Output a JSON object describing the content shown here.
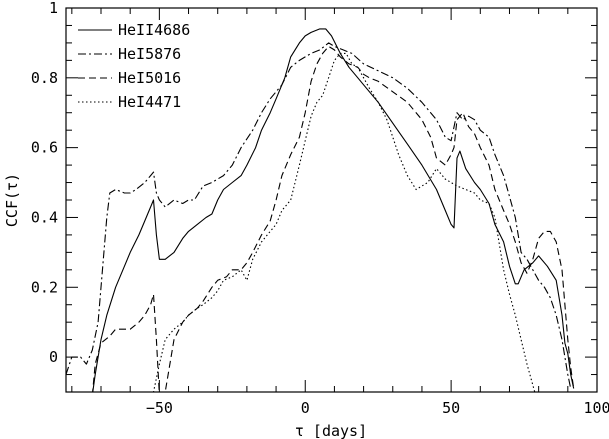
{
  "chart_data": {
    "type": "line",
    "title": "",
    "xlabel": "τ [days]",
    "ylabel": "CCF(τ)",
    "xlim": [
      -82,
      100
    ],
    "ylim": [
      -0.1,
      1.0
    ],
    "x_ticks_major": [
      -50,
      0,
      50,
      100
    ],
    "x_tick_labels": [
      "−50",
      "0",
      "50",
      "100"
    ],
    "y_ticks_major": [
      0,
      0.2,
      0.4,
      0.6,
      0.8,
      1
    ],
    "y_tick_labels": [
      "0",
      "0.2",
      "0.4",
      "0.6",
      "0.8",
      "1"
    ],
    "grid": false,
    "legend_position": "top-left",
    "series": [
      {
        "name": "HeII4686",
        "dash": "solid",
        "points": [
          [
            -73,
            -0.11
          ],
          [
            -72,
            -0.05
          ],
          [
            -70,
            0.05
          ],
          [
            -68,
            0.12
          ],
          [
            -65,
            0.2
          ],
          [
            -62,
            0.26
          ],
          [
            -60,
            0.3
          ],
          [
            -57,
            0.35
          ],
          [
            -55,
            0.39
          ],
          [
            -53,
            0.43
          ],
          [
            -52,
            0.45
          ],
          [
            -51,
            0.35
          ],
          [
            -50,
            0.28
          ],
          [
            -48,
            0.28
          ],
          [
            -45,
            0.3
          ],
          [
            -42,
            0.34
          ],
          [
            -40,
            0.36
          ],
          [
            -37,
            0.38
          ],
          [
            -34,
            0.4
          ],
          [
            -32,
            0.41
          ],
          [
            -30,
            0.45
          ],
          [
            -28,
            0.48
          ],
          [
            -25,
            0.5
          ],
          [
            -22,
            0.52
          ],
          [
            -20,
            0.55
          ],
          [
            -17,
            0.6
          ],
          [
            -15,
            0.65
          ],
          [
            -12,
            0.7
          ],
          [
            -10,
            0.74
          ],
          [
            -7,
            0.8
          ],
          [
            -5,
            0.86
          ],
          [
            -2,
            0.9
          ],
          [
            0,
            0.92
          ],
          [
            2,
            0.93
          ],
          [
            5,
            0.94
          ],
          [
            7,
            0.94
          ],
          [
            9,
            0.92
          ],
          [
            12,
            0.87
          ],
          [
            15,
            0.83
          ],
          [
            18,
            0.8
          ],
          [
            20,
            0.78
          ],
          [
            25,
            0.73
          ],
          [
            30,
            0.67
          ],
          [
            35,
            0.61
          ],
          [
            40,
            0.55
          ],
          [
            45,
            0.48
          ],
          [
            48,
            0.42
          ],
          [
            50,
            0.38
          ],
          [
            51,
            0.37
          ],
          [
            52,
            0.57
          ],
          [
            53,
            0.59
          ],
          [
            55,
            0.54
          ],
          [
            58,
            0.5
          ],
          [
            60,
            0.48
          ],
          [
            63,
            0.44
          ],
          [
            65,
            0.38
          ],
          [
            68,
            0.33
          ],
          [
            70,
            0.26
          ],
          [
            72,
            0.21
          ],
          [
            73,
            0.21
          ],
          [
            75,
            0.25
          ],
          [
            78,
            0.27
          ],
          [
            80,
            0.29
          ],
          [
            83,
            0.26
          ],
          [
            86,
            0.22
          ],
          [
            88,
            0.12
          ],
          [
            89,
            0.04
          ],
          [
            90,
            0.01
          ],
          [
            91,
            -0.05
          ],
          [
            92,
            -0.09
          ]
        ]
      },
      {
        "name": "HeI5876",
        "dash": "dash-dot",
        "points": [
          [
            -82,
            -0.05
          ],
          [
            -80,
            0.0
          ],
          [
            -77,
            0.0
          ],
          [
            -75,
            -0.02
          ],
          [
            -73,
            0.02
          ],
          [
            -71,
            0.1
          ],
          [
            -69,
            0.3
          ],
          [
            -68,
            0.4
          ],
          [
            -67,
            0.47
          ],
          [
            -65,
            0.48
          ],
          [
            -62,
            0.47
          ],
          [
            -60,
            0.47
          ],
          [
            -58,
            0.48
          ],
          [
            -55,
            0.5
          ],
          [
            -53,
            0.52
          ],
          [
            -52,
            0.53
          ],
          [
            -51,
            0.47
          ],
          [
            -50,
            0.45
          ],
          [
            -48,
            0.43
          ],
          [
            -45,
            0.45
          ],
          [
            -42,
            0.44
          ],
          [
            -40,
            0.45
          ],
          [
            -38,
            0.45
          ],
          [
            -35,
            0.49
          ],
          [
            -32,
            0.5
          ],
          [
            -28,
            0.52
          ],
          [
            -25,
            0.55
          ],
          [
            -22,
            0.6
          ],
          [
            -18,
            0.65
          ],
          [
            -15,
            0.7
          ],
          [
            -12,
            0.74
          ],
          [
            -8,
            0.78
          ],
          [
            -5,
            0.83
          ],
          [
            -2,
            0.85
          ],
          [
            0,
            0.86
          ],
          [
            2,
            0.87
          ],
          [
            5,
            0.88
          ],
          [
            8,
            0.9
          ],
          [
            10,
            0.89
          ],
          [
            13,
            0.88
          ],
          [
            16,
            0.87
          ],
          [
            20,
            0.84
          ],
          [
            25,
            0.82
          ],
          [
            30,
            0.8
          ],
          [
            35,
            0.77
          ],
          [
            40,
            0.73
          ],
          [
            45,
            0.68
          ],
          [
            48,
            0.63
          ],
          [
            50,
            0.62
          ],
          [
            52,
            0.7
          ],
          [
            54,
            0.68
          ],
          [
            56,
            0.69
          ],
          [
            58,
            0.68
          ],
          [
            60,
            0.65
          ],
          [
            63,
            0.63
          ],
          [
            65,
            0.58
          ],
          [
            68,
            0.52
          ],
          [
            70,
            0.46
          ],
          [
            72,
            0.4
          ],
          [
            74,
            0.3
          ],
          [
            76,
            0.28
          ],
          [
            78,
            0.25
          ],
          [
            80,
            0.22
          ],
          [
            82,
            0.2
          ],
          [
            84,
            0.17
          ],
          [
            86,
            0.12
          ],
          [
            88,
            0.05
          ],
          [
            89,
            0.0
          ],
          [
            90,
            -0.05
          ],
          [
            91,
            -0.09
          ]
        ]
      },
      {
        "name": "HeI5016",
        "dash": "dashed",
        "points": [
          [
            -73,
            -0.11
          ],
          [
            -72,
            -0.02
          ],
          [
            -70,
            0.04
          ],
          [
            -67,
            0.06
          ],
          [
            -65,
            0.08
          ],
          [
            -62,
            0.08
          ],
          [
            -60,
            0.08
          ],
          [
            -57,
            0.1
          ],
          [
            -55,
            0.12
          ],
          [
            -53,
            0.15
          ],
          [
            -52,
            0.18
          ],
          [
            -51,
            0.05
          ],
          [
            -50,
            -0.11
          ],
          [
            -48,
            -0.1
          ],
          [
            -45,
            0.05
          ],
          [
            -42,
            0.1
          ],
          [
            -40,
            0.12
          ],
          [
            -37,
            0.14
          ],
          [
            -35,
            0.16
          ],
          [
            -32,
            0.2
          ],
          [
            -30,
            0.22
          ],
          [
            -27,
            0.23
          ],
          [
            -25,
            0.25
          ],
          [
            -22,
            0.25
          ],
          [
            -20,
            0.27
          ],
          [
            -18,
            0.3
          ],
          [
            -15,
            0.35
          ],
          [
            -12,
            0.39
          ],
          [
            -10,
            0.45
          ],
          [
            -8,
            0.52
          ],
          [
            -5,
            0.58
          ],
          [
            -2,
            0.63
          ],
          [
            0,
            0.7
          ],
          [
            2,
            0.79
          ],
          [
            4,
            0.84
          ],
          [
            6,
            0.87
          ],
          [
            8,
            0.89
          ],
          [
            10,
            0.88
          ],
          [
            12,
            0.86
          ],
          [
            15,
            0.84
          ],
          [
            18,
            0.83
          ],
          [
            20,
            0.81
          ],
          [
            22,
            0.8
          ],
          [
            25,
            0.79
          ],
          [
            30,
            0.76
          ],
          [
            35,
            0.73
          ],
          [
            40,
            0.68
          ],
          [
            43,
            0.63
          ],
          [
            45,
            0.57
          ],
          [
            48,
            0.55
          ],
          [
            50,
            0.58
          ],
          [
            51,
            0.6
          ],
          [
            52,
            0.68
          ],
          [
            54,
            0.7
          ],
          [
            56,
            0.66
          ],
          [
            58,
            0.64
          ],
          [
            60,
            0.6
          ],
          [
            63,
            0.55
          ],
          [
            65,
            0.48
          ],
          [
            68,
            0.42
          ],
          [
            70,
            0.38
          ],
          [
            72,
            0.33
          ],
          [
            74,
            0.27
          ],
          [
            76,
            0.24
          ],
          [
            78,
            0.28
          ],
          [
            80,
            0.34
          ],
          [
            82,
            0.36
          ],
          [
            84,
            0.36
          ],
          [
            86,
            0.33
          ],
          [
            88,
            0.25
          ],
          [
            89,
            0.15
          ],
          [
            90,
            0.05
          ],
          [
            91,
            -0.03
          ],
          [
            92,
            -0.09
          ]
        ]
      },
      {
        "name": "HeI4471",
        "dash": "dotted",
        "points": [
          [
            -53,
            -0.11
          ],
          [
            -52,
            -0.1
          ],
          [
            -50,
            -0.02
          ],
          [
            -48,
            0.05
          ],
          [
            -45,
            0.08
          ],
          [
            -42,
            0.1
          ],
          [
            -40,
            0.12
          ],
          [
            -37,
            0.14
          ],
          [
            -35,
            0.15
          ],
          [
            -32,
            0.17
          ],
          [
            -30,
            0.19
          ],
          [
            -28,
            0.22
          ],
          [
            -25,
            0.23
          ],
          [
            -22,
            0.25
          ],
          [
            -20,
            0.22
          ],
          [
            -18,
            0.28
          ],
          [
            -15,
            0.33
          ],
          [
            -12,
            0.36
          ],
          [
            -10,
            0.38
          ],
          [
            -8,
            0.42
          ],
          [
            -5,
            0.45
          ],
          [
            -2,
            0.55
          ],
          [
            0,
            0.62
          ],
          [
            2,
            0.69
          ],
          [
            4,
            0.73
          ],
          [
            6,
            0.75
          ],
          [
            8,
            0.8
          ],
          [
            10,
            0.85
          ],
          [
            12,
            0.87
          ],
          [
            14,
            0.87
          ],
          [
            16,
            0.84
          ],
          [
            18,
            0.83
          ],
          [
            20,
            0.8
          ],
          [
            22,
            0.77
          ],
          [
            25,
            0.73
          ],
          [
            28,
            0.68
          ],
          [
            30,
            0.63
          ],
          [
            32,
            0.58
          ],
          [
            35,
            0.52
          ],
          [
            38,
            0.48
          ],
          [
            40,
            0.49
          ],
          [
            42,
            0.5
          ],
          [
            45,
            0.54
          ],
          [
            48,
            0.51
          ],
          [
            50,
            0.5
          ],
          [
            52,
            0.49
          ],
          [
            55,
            0.48
          ],
          [
            58,
            0.47
          ],
          [
            60,
            0.45
          ],
          [
            63,
            0.44
          ],
          [
            65,
            0.4
          ],
          [
            67,
            0.3
          ],
          [
            68,
            0.25
          ],
          [
            70,
            0.18
          ],
          [
            72,
            0.12
          ],
          [
            74,
            0.05
          ],
          [
            76,
            -0.02
          ],
          [
            78,
            -0.08
          ],
          [
            79,
            -0.11
          ]
        ]
      }
    ]
  }
}
